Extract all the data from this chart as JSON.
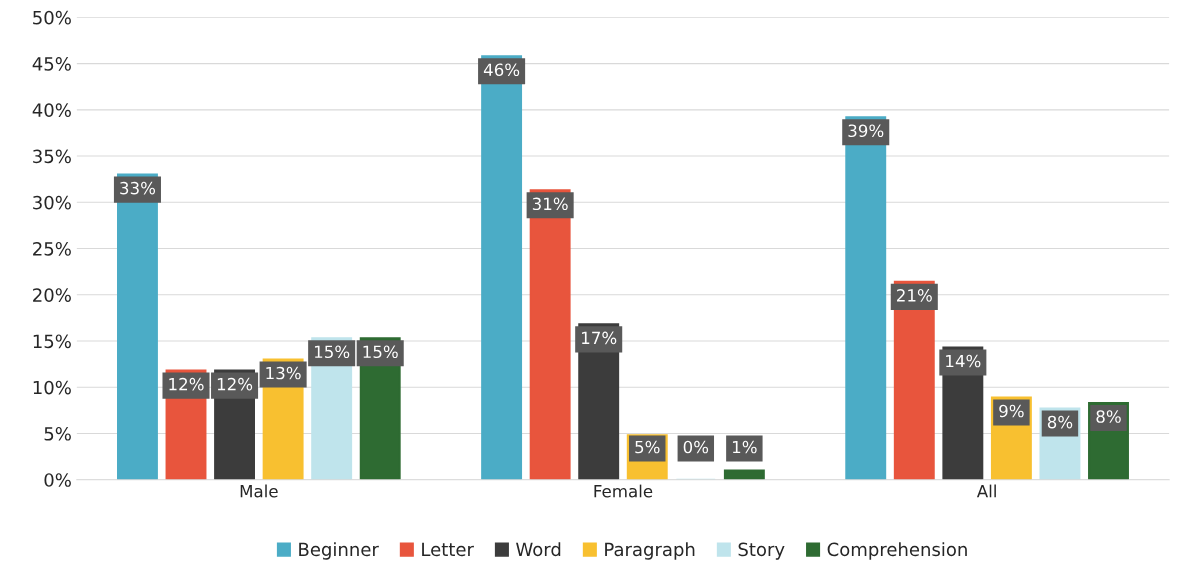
{
  "chart_data": {
    "type": "bar",
    "categories": [
      "Male",
      "Female",
      "All"
    ],
    "series": [
      {
        "name": "Beginner",
        "color": "#4bacc6",
        "values": [
          33,
          45.8,
          39.2
        ],
        "value_labels": [
          "33%",
          "46%",
          "39%"
        ]
      },
      {
        "name": "Letter",
        "color": "#e8553d",
        "values": [
          11.8,
          31.3,
          21.4
        ],
        "value_labels": [
          "12%",
          "31%",
          "21%"
        ]
      },
      {
        "name": "Word",
        "color": "#3c3c3c",
        "values": [
          11.8,
          16.8,
          14.3
        ],
        "value_labels": [
          "12%",
          "17%",
          "14%"
        ]
      },
      {
        "name": "Paragraph",
        "color": "#f8c030",
        "values": [
          13,
          4.8,
          8.9
        ],
        "value_labels": [
          "13%",
          "5%",
          "9%"
        ]
      },
      {
        "name": "Story",
        "color": "#bfe4ec",
        "values": [
          15.3,
          0,
          7.7
        ],
        "value_labels": [
          "15%",
          "0%",
          "8%"
        ]
      },
      {
        "name": "Comprehension",
        "color": "#2e6b32",
        "values": [
          15.3,
          1,
          8.3
        ],
        "value_labels": [
          "15%",
          "1%",
          "8%"
        ]
      }
    ],
    "ylim": [
      0,
      50
    ],
    "yticks": [
      {
        "value": 0,
        "label": "0%"
      },
      {
        "value": 5,
        "label": "5%"
      },
      {
        "value": 10,
        "label": "10%"
      },
      {
        "value": 15,
        "label": "15%"
      },
      {
        "value": 20,
        "label": "20%"
      },
      {
        "value": 25,
        "label": "25%"
      },
      {
        "value": 30,
        "label": "30%"
      },
      {
        "value": 35,
        "label": "35%"
      },
      {
        "value": 40,
        "label": "40%"
      },
      {
        "value": 45,
        "label": "45%"
      },
      {
        "value": 50,
        "label": "50%"
      }
    ],
    "grid": "y",
    "legend": "bottom"
  }
}
